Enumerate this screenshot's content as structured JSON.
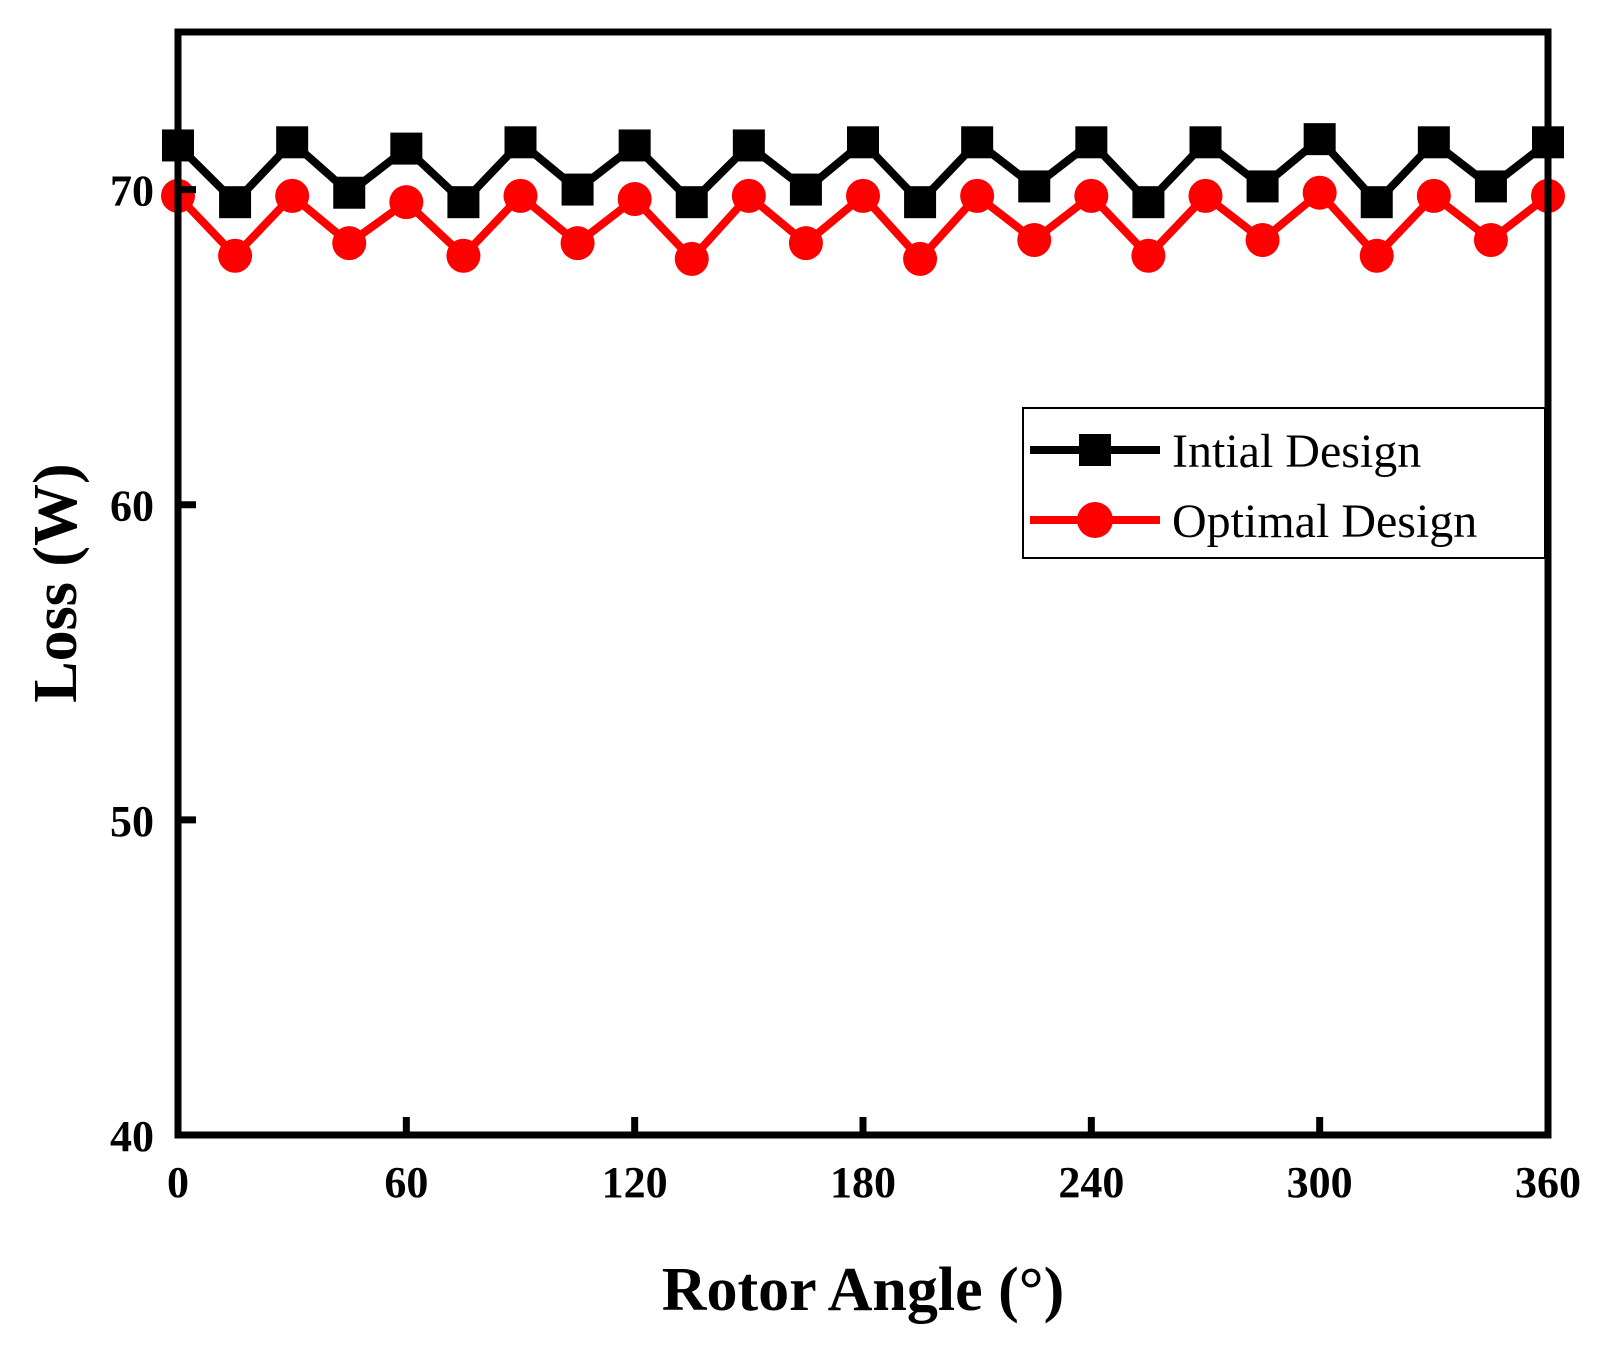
{
  "chart_data": {
    "type": "line",
    "title": "",
    "xlabel": "Rotor Angle (°)",
    "ylabel": "Loss (W)",
    "xlim": [
      0,
      360
    ],
    "ylim": [
      40,
      75
    ],
    "xticks": [
      0,
      60,
      120,
      180,
      240,
      300,
      360
    ],
    "yticks": [
      40,
      50,
      60,
      70
    ],
    "xtick_labels": [
      "0",
      "60",
      "120",
      "180",
      "240",
      "300",
      "360"
    ],
    "ytick_labels": [
      "40",
      "50",
      "60",
      "70"
    ],
    "grid": false,
    "legend_position": "right",
    "x": [
      0,
      15,
      30,
      45,
      60,
      75,
      90,
      105,
      120,
      135,
      150,
      165,
      180,
      195,
      210,
      225,
      240,
      255,
      270,
      285,
      300,
      315,
      330,
      345,
      360
    ],
    "series": [
      {
        "name": "Intial Design",
        "color": "#000000",
        "marker": "square",
        "values": [
          71.4,
          69.6,
          71.5,
          69.9,
          71.3,
          69.6,
          71.5,
          70.0,
          71.4,
          69.6,
          71.4,
          70.0,
          71.5,
          69.6,
          71.5,
          70.1,
          71.5,
          69.6,
          71.5,
          70.1,
          71.6,
          69.6,
          71.5,
          70.1,
          71.5
        ]
      },
      {
        "name": "Optimal Design",
        "color": "#ff0000",
        "marker": "circle",
        "values": [
          69.8,
          67.9,
          69.8,
          68.3,
          69.6,
          67.9,
          69.8,
          68.3,
          69.7,
          67.8,
          69.8,
          68.3,
          69.8,
          67.8,
          69.8,
          68.4,
          69.8,
          67.9,
          69.8,
          68.4,
          69.9,
          67.9,
          69.8,
          68.4,
          69.8
        ]
      }
    ]
  }
}
